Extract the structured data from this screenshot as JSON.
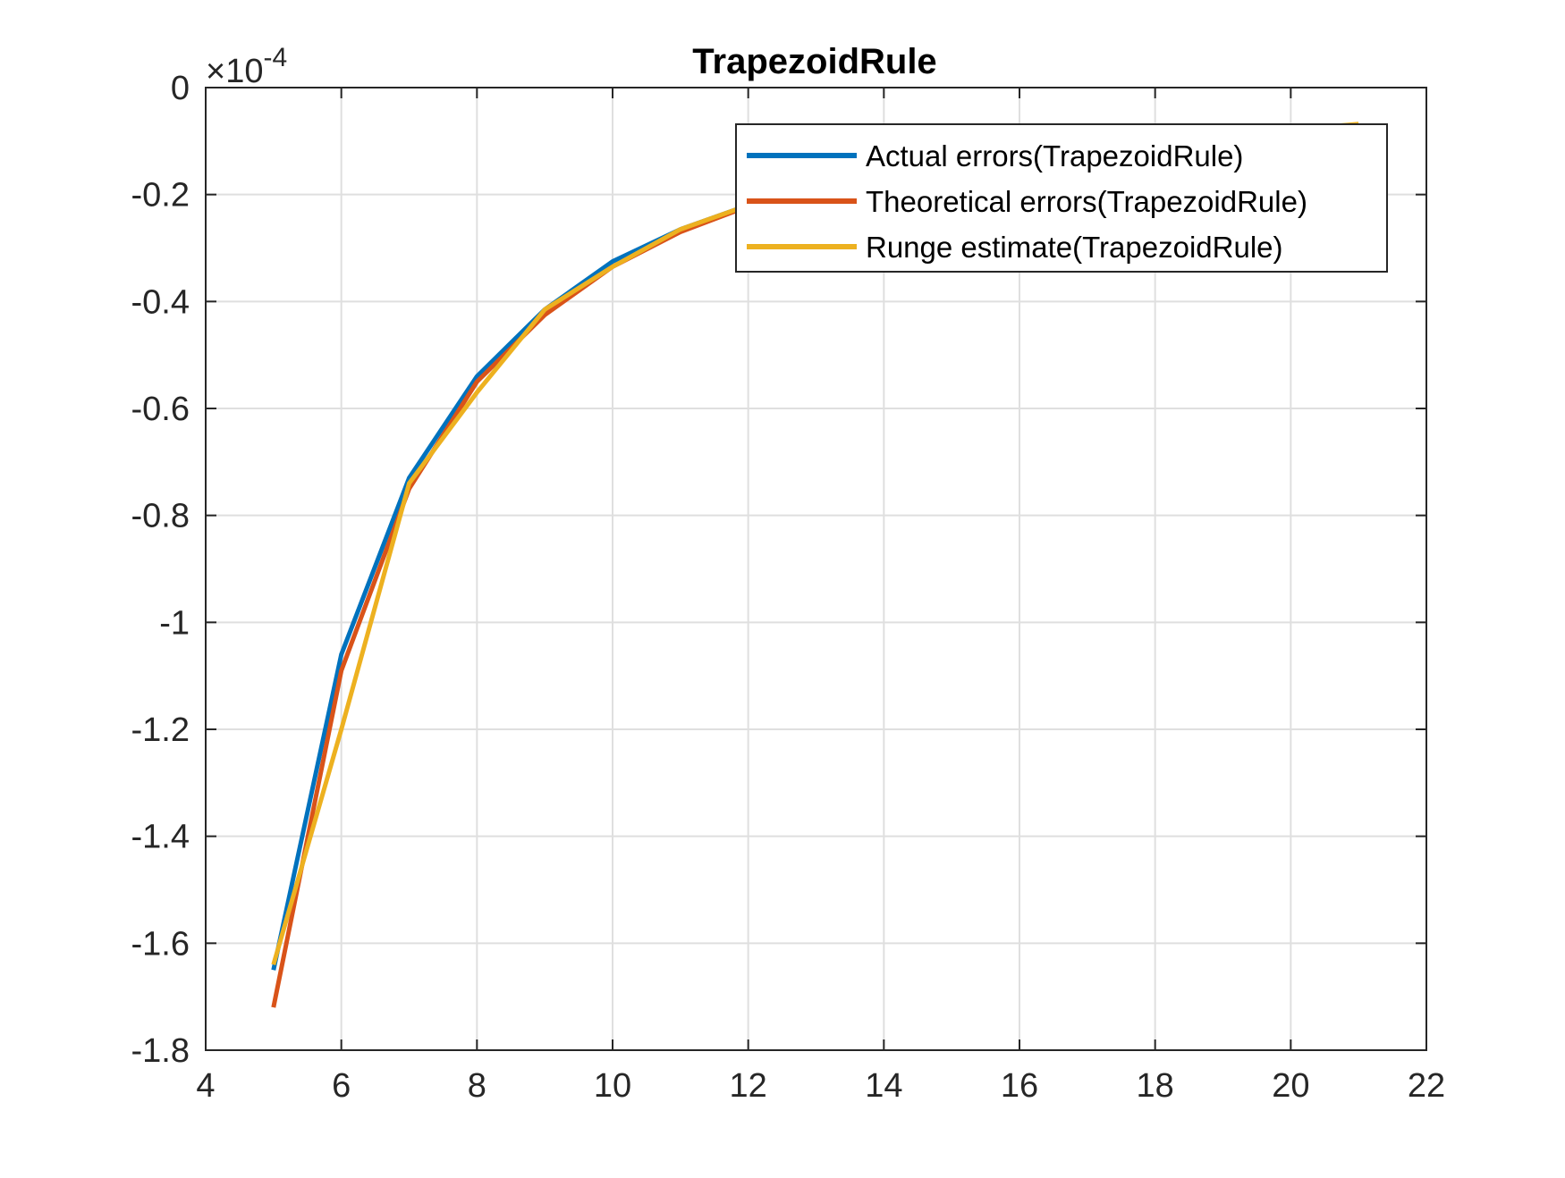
{
  "chart_data": {
    "type": "line",
    "title": "TrapezoidRule",
    "xlabel": "",
    "ylabel": "",
    "xlim": [
      4,
      22
    ],
    "ylim": [
      -1.8,
      0
    ],
    "x_ticks": [
      4,
      6,
      8,
      10,
      12,
      14,
      16,
      18,
      20,
      22
    ],
    "y_ticks": [
      0,
      -0.2,
      -0.4,
      -0.6,
      -0.8,
      -1,
      -1.2,
      -1.4,
      -1.6,
      -1.8
    ],
    "x_tick_labels": [
      "4",
      "6",
      "8",
      "10",
      "12",
      "14",
      "16",
      "18",
      "20",
      "22"
    ],
    "y_tick_labels": [
      "0",
      "-0.2",
      "-0.4",
      "-0.6",
      "-0.8",
      "-1",
      "-1.2",
      "-1.4",
      "-1.6",
      "-1.8"
    ],
    "y_exponent_prefix": "×10",
    "y_exponent": "-4",
    "grid": true,
    "legend_position": "top-right",
    "x": [
      5,
      6,
      7,
      8,
      9,
      10,
      11,
      12,
      13,
      14,
      15,
      16,
      17,
      18,
      19,
      20,
      21
    ],
    "series": [
      {
        "name": "Actual errors(TrapezoidRule)",
        "color": "#0072BD",
        "values": [
          -1.65,
          -1.06,
          -0.73,
          -0.54,
          -0.415,
          -0.325,
          -0.265,
          -0.22,
          -0.185,
          -0.16,
          -0.14,
          -0.122,
          -0.108,
          -0.097,
          -0.087,
          -0.079,
          -0.072
        ]
      },
      {
        "name": "Theoretical errors(TrapezoidRule)",
        "color": "#D95319",
        "values": [
          -1.72,
          -1.09,
          -0.75,
          -0.55,
          -0.425,
          -0.335,
          -0.27,
          -0.222,
          -0.187,
          -0.161,
          -0.141,
          -0.123,
          -0.109,
          -0.097,
          -0.088,
          -0.08,
          -0.073
        ]
      },
      {
        "name": "Runge estimate(TrapezoidRule)",
        "color": "#EDB120",
        "values": [
          -1.64,
          -1.2,
          -0.74,
          -0.57,
          -0.415,
          -0.335,
          -0.265,
          -0.22,
          -0.185,
          -0.16,
          -0.14,
          -0.122,
          -0.108,
          -0.097,
          -0.087,
          -0.079,
          -0.068
        ]
      }
    ]
  }
}
